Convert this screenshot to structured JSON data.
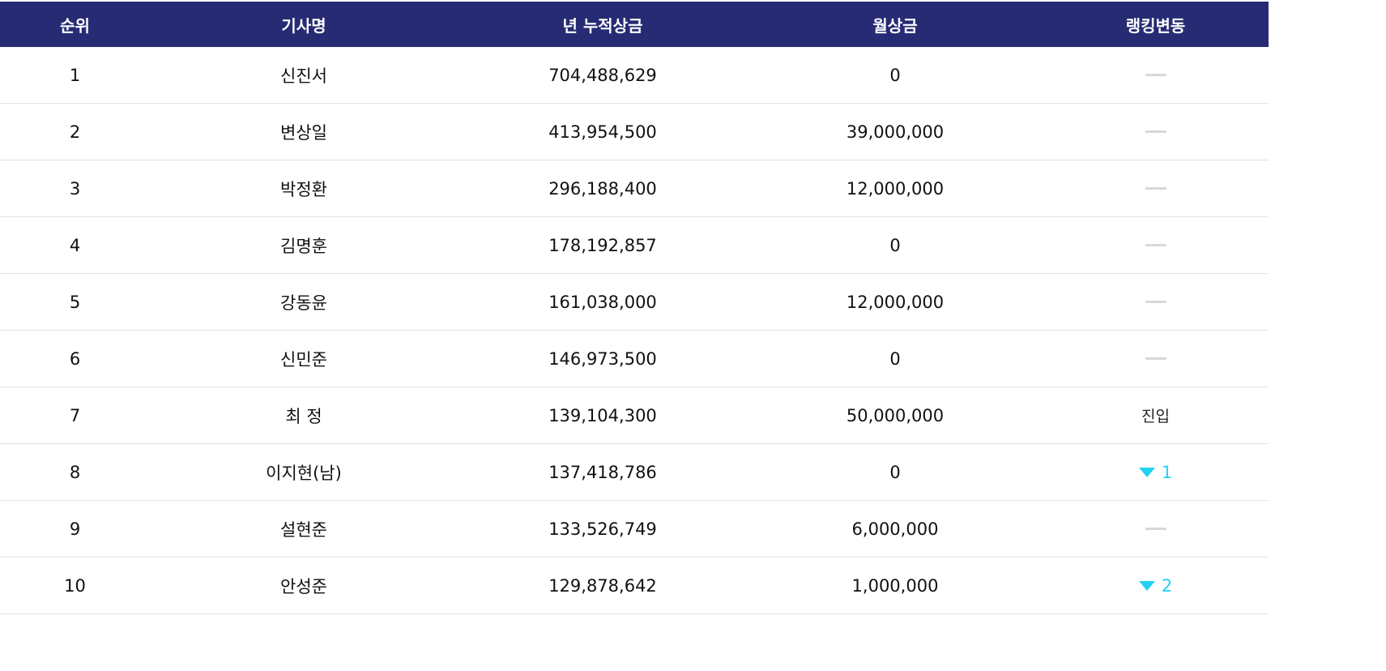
{
  "headers": [
    "순위",
    "기사명",
    "년 누적상금",
    "월상금",
    "랭킹변동"
  ],
  "rows": [
    {
      "rank": "1",
      "name": "신진서",
      "annual_prize": "704,488,629",
      "monthly_prize": "0",
      "change_type": "none",
      "change_text": ""
    },
    {
      "rank": "2",
      "name": "변상일",
      "annual_prize": "413,954,500",
      "monthly_prize": "39,000,000",
      "change_type": "none",
      "change_text": ""
    },
    {
      "rank": "3",
      "name": "박정환",
      "annual_prize": "296,188,400",
      "monthly_prize": "12,000,000",
      "change_type": "none",
      "change_text": ""
    },
    {
      "rank": "4",
      "name": "김명훈",
      "annual_prize": "178,192,857",
      "monthly_prize": "0",
      "change_type": "none",
      "change_text": ""
    },
    {
      "rank": "5",
      "name": "강동윤",
      "annual_prize": "161,038,000",
      "monthly_prize": "12,000,000",
      "change_type": "none",
      "change_text": ""
    },
    {
      "rank": "6",
      "name": "신민준",
      "annual_prize": "146,973,500",
      "monthly_prize": "0",
      "change_type": "none",
      "change_text": ""
    },
    {
      "rank": "7",
      "name": "최 정",
      "annual_prize": "139,104,300",
      "monthly_prize": "50,000,000",
      "change_type": "entry",
      "change_text": "진입"
    },
    {
      "rank": "8",
      "name": "이지현(남)",
      "annual_prize": "137,418,786",
      "monthly_prize": "0",
      "change_type": "down",
      "change_text": "1"
    },
    {
      "rank": "9",
      "name": "설현준",
      "annual_prize": "133,526,749",
      "monthly_prize": "6,000,000",
      "change_type": "none",
      "change_text": ""
    },
    {
      "rank": "10",
      "name": "안성준",
      "annual_prize": "129,878,642",
      "monthly_prize": "1,000,000",
      "change_type": "down",
      "change_text": "2"
    }
  ],
  "colors": {
    "header_bg": "#262b73",
    "header_text": "#ffffff",
    "down_arrow": "#22d3f0",
    "no_change_dash": "#d8d8d8"
  },
  "icons": {
    "no_change": "dash-icon",
    "down": "triangle-down-icon"
  }
}
